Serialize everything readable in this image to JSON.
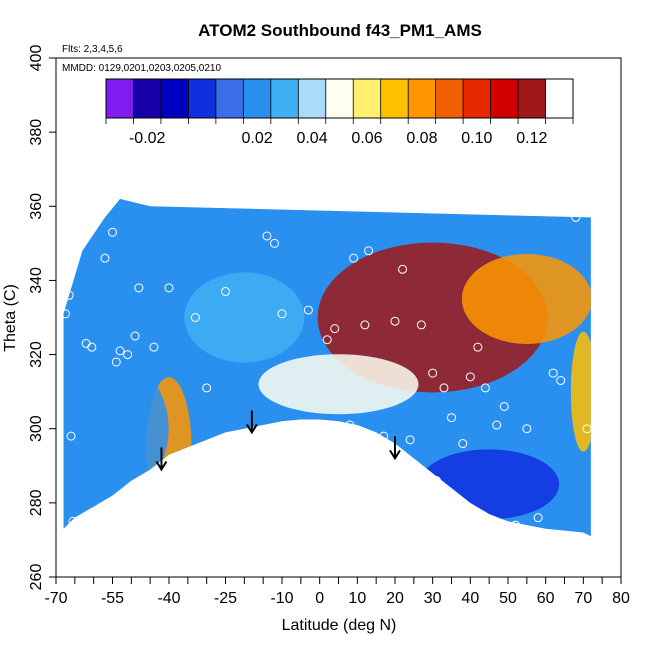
{
  "chart_data": {
    "type": "heatmap",
    "title": "ATOM2 Southbound f43_PM1_AMS",
    "flights_note": "Flts: 2,3,4,5,6",
    "dates_note": "MMDD: 0129,0201,0203,0205,0210",
    "xlabel": "Latitude (deg N)",
    "ylabel": "Theta (C)",
    "xlim": [
      -70,
      80
    ],
    "ylim": [
      260,
      400
    ],
    "x_ticks_major": [
      -70,
      -55,
      -40,
      -25,
      -10,
      0,
      10,
      20,
      30,
      40,
      50,
      60,
      70,
      80
    ],
    "x_ticks_minor": [
      -65,
      -60,
      -50,
      -45,
      -35,
      -30,
      -20,
      -15,
      -5,
      5,
      15,
      25,
      35,
      45,
      55,
      65,
      75
    ],
    "y_ticks": [
      260,
      280,
      300,
      320,
      340,
      360,
      380,
      400
    ],
    "colorbar": {
      "min": -0.035,
      "max": 0.135,
      "boundaries": [
        -0.035,
        -0.025,
        -0.015,
        -0.005,
        0.005,
        0.015,
        0.025,
        0.035,
        0.045,
        0.055,
        0.065,
        0.075,
        0.085,
        0.095,
        0.105,
        0.115,
        0.125,
        0.135
      ],
      "tick_labels": [
        -0.02,
        0.02,
        0.04,
        0.06,
        0.08,
        0.1,
        0.12
      ],
      "tick_label_text": [
        "-0.02",
        "0.02",
        "0.04",
        "0.06",
        "0.08",
        "0.10",
        "0.12"
      ],
      "colors": [
        "#7f1df0",
        "#1800a8",
        "#0000c0",
        "#1030e0",
        "#3a6ee8",
        "#2a90f0",
        "#40b0f4",
        "#a8dcf8",
        "#fffff0",
        "#ffee70",
        "#ffc000",
        "#ff9600",
        "#f06000",
        "#e82800",
        "#d00000",
        "#a01818"
      ]
    },
    "regions": [
      {
        "x": 30,
        "y": 330,
        "value": 0.12
      },
      {
        "x": 55,
        "y": 335,
        "value": 0.08
      },
      {
        "x": -40,
        "y": 295,
        "value": 0.08
      },
      {
        "x": 70,
        "y": 310,
        "value": 0.07
      },
      {
        "x": -60,
        "y": 300,
        "value": 0.02
      },
      {
        "x": -20,
        "y": 330,
        "value": 0.03
      },
      {
        "x": 45,
        "y": 285,
        "value": 0.0
      },
      {
        "x": 5,
        "y": 312,
        "value": 0.05
      }
    ],
    "observations": [
      {
        "lat": -67.5,
        "theta": 331
      },
      {
        "lat": -66.5,
        "theta": 336
      },
      {
        "lat": -66,
        "theta": 298
      },
      {
        "lat": -65.5,
        "theta": 275
      },
      {
        "lat": -62,
        "theta": 323
      },
      {
        "lat": -60.5,
        "theta": 322
      },
      {
        "lat": -57,
        "theta": 346
      },
      {
        "lat": -55,
        "theta": 353
      },
      {
        "lat": -54,
        "theta": 318
      },
      {
        "lat": -53,
        "theta": 321
      },
      {
        "lat": -51,
        "theta": 320
      },
      {
        "lat": -49,
        "theta": 325
      },
      {
        "lat": -48,
        "theta": 338
      },
      {
        "lat": -44,
        "theta": 322
      },
      {
        "lat": -40,
        "theta": 338
      },
      {
        "lat": -36,
        "theta": 292
      },
      {
        "lat": -33,
        "theta": 330
      },
      {
        "lat": -30,
        "theta": 311
      },
      {
        "lat": -25,
        "theta": 337
      },
      {
        "lat": -14,
        "theta": 352
      },
      {
        "lat": -12,
        "theta": 350
      },
      {
        "lat": -10,
        "theta": 331
      },
      {
        "lat": -3,
        "theta": 332
      },
      {
        "lat": 2,
        "theta": 324
      },
      {
        "lat": 4,
        "theta": 327
      },
      {
        "lat": 8,
        "theta": 301
      },
      {
        "lat": 9,
        "theta": 346
      },
      {
        "lat": 12,
        "theta": 328
      },
      {
        "lat": 13,
        "theta": 348
      },
      {
        "lat": 17,
        "theta": 298
      },
      {
        "lat": 20,
        "theta": 329
      },
      {
        "lat": 22,
        "theta": 343
      },
      {
        "lat": 24,
        "theta": 297
      },
      {
        "lat": 27,
        "theta": 328
      },
      {
        "lat": 30,
        "theta": 315
      },
      {
        "lat": 31,
        "theta": 286
      },
      {
        "lat": 33,
        "theta": 311
      },
      {
        "lat": 35,
        "theta": 303
      },
      {
        "lat": 38,
        "theta": 296
      },
      {
        "lat": 40,
        "theta": 314
      },
      {
        "lat": 42,
        "theta": 322
      },
      {
        "lat": 44,
        "theta": 311
      },
      {
        "lat": 47,
        "theta": 301
      },
      {
        "lat": 49,
        "theta": 306
      },
      {
        "lat": 52,
        "theta": 274
      },
      {
        "lat": 55,
        "theta": 300
      },
      {
        "lat": 58,
        "theta": 276
      },
      {
        "lat": 62,
        "theta": 315
      },
      {
        "lat": 64,
        "theta": 313
      },
      {
        "lat": 68,
        "theta": 357
      },
      {
        "lat": 71,
        "theta": 300
      }
    ],
    "terrain_bottom_theta": [
      [
        -68,
        273
      ],
      [
        -65,
        276
      ],
      [
        -60,
        279
      ],
      [
        -55,
        282
      ],
      [
        -50,
        286
      ],
      [
        -45,
        289
      ],
      [
        -40,
        293
      ],
      [
        -35,
        295
      ],
      [
        -30,
        297
      ],
      [
        -25,
        299
      ],
      [
        -20,
        300
      ],
      [
        -15,
        301
      ],
      [
        -10,
        302
      ],
      [
        -5,
        302.5
      ],
      [
        0,
        302.5
      ],
      [
        5,
        302
      ],
      [
        10,
        301
      ],
      [
        15,
        299
      ],
      [
        20,
        296
      ],
      [
        25,
        292
      ],
      [
        30,
        288
      ],
      [
        35,
        284
      ],
      [
        40,
        280
      ],
      [
        45,
        277
      ],
      [
        50,
        275
      ],
      [
        55,
        274
      ],
      [
        60,
        273
      ],
      [
        65,
        272.5
      ],
      [
        70,
        272
      ],
      [
        72,
        271
      ]
    ],
    "arrows": [
      {
        "lat": -42,
        "theta": 289
      },
      {
        "lat": -18,
        "theta": 299
      },
      {
        "lat": 20,
        "theta": 292
      }
    ]
  }
}
